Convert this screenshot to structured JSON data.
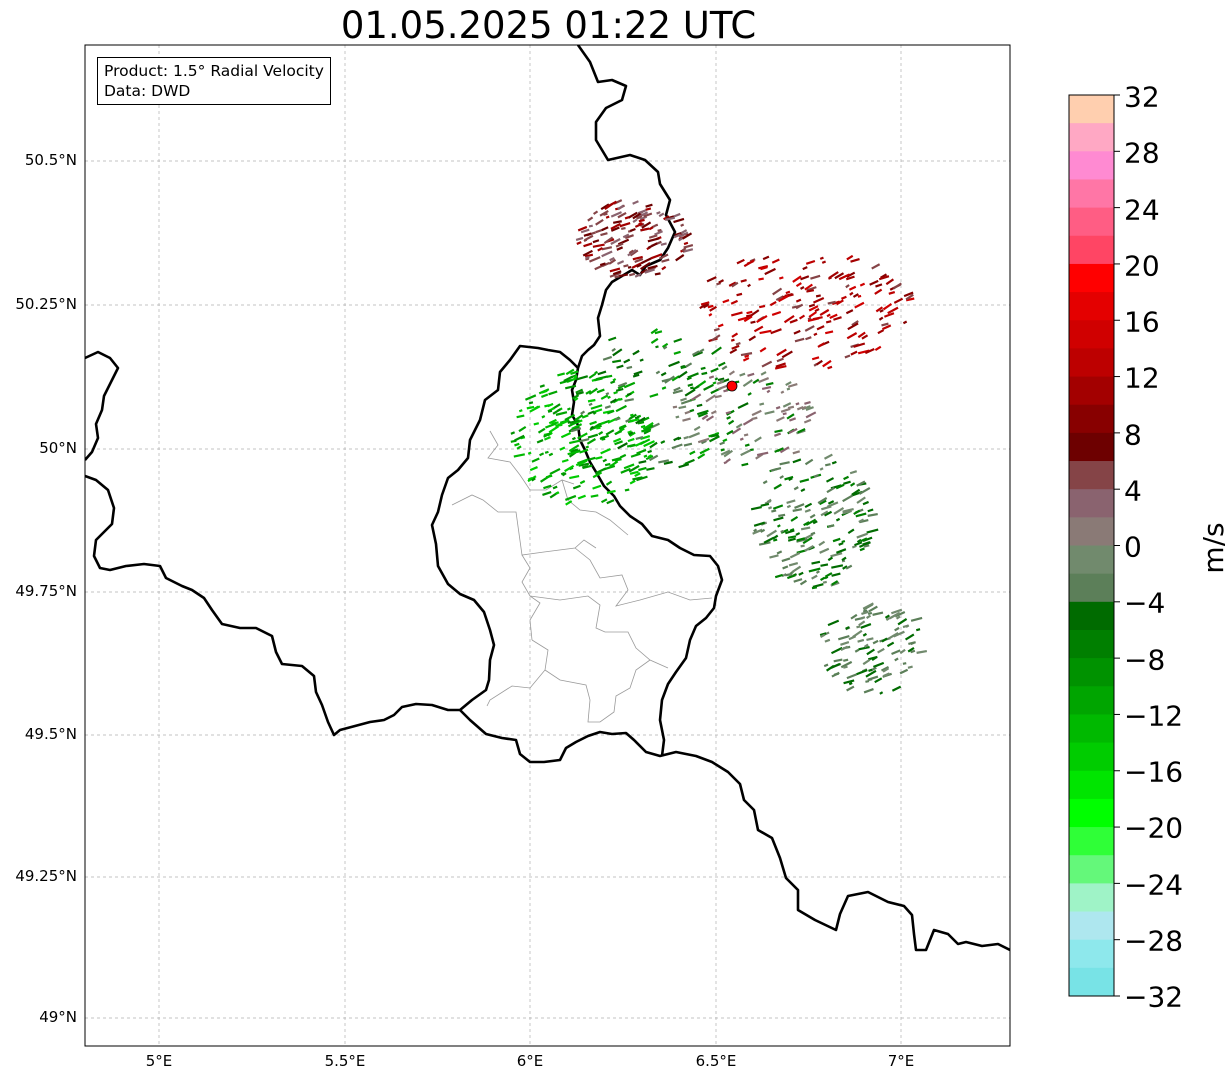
{
  "title": "01.05.2025 01:22 UTC",
  "info": {
    "product": "Product: 1.5° Radial Velocity",
    "source": "Data: DWD"
  },
  "axes": {
    "lat_labels": [
      "50.5°N",
      "50.25°N",
      "50°N",
      "49.75°N",
      "49.5°N",
      "49.25°N",
      "49°N"
    ],
    "lon_labels": [
      "5°E",
      "5.5°E",
      "6°E",
      "6.5°E",
      "7°E"
    ]
  },
  "colorbar": {
    "unit": "m/s",
    "tick_labels": [
      "32",
      "28",
      "24",
      "20",
      "16",
      "12",
      "8",
      "4",
      "0",
      "−4",
      "−8",
      "−12",
      "−16",
      "−20",
      "−24",
      "−28",
      "−32"
    ],
    "colors_top_to_bottom": [
      "#ffcfaf",
      "#ffa8c4",
      "#ff8ad2",
      "#ff76a6",
      "#ff5d84",
      "#ff4564",
      "#ff0000",
      "#e40000",
      "#d00000",
      "#bd0000",
      "#a30000",
      "#880000",
      "#6d0000",
      "#854447",
      "#8a636f",
      "#8a7a76",
      "#718a6d",
      "#5c7f59",
      "#006b00",
      "#007f00",
      "#009200",
      "#00a500",
      "#00b900",
      "#00cc00",
      "#00e500",
      "#00ff00",
      "#2fff37",
      "#64f87a",
      "#9ff3c7",
      "#aee7ef",
      "#8ee8ec",
      "#78e3e6"
    ]
  },
  "radar": {
    "site_marker_color": "#ff0000",
    "site_lat": 50.11,
    "site_lon": 6.55
  }
}
